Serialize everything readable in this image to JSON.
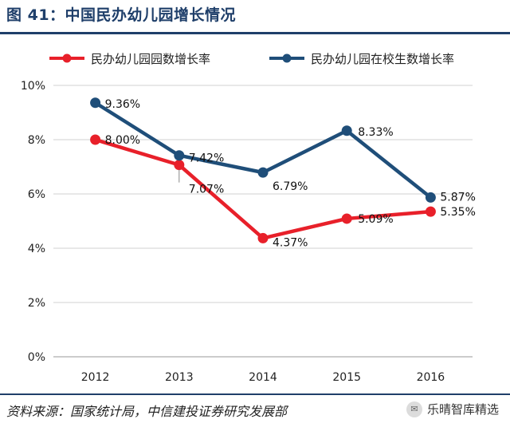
{
  "figure": {
    "title": "图 41：中国民办幼儿园增长情况",
    "source": "资料来源：国家统计局，中信建投证券研究发展部",
    "watermark": "乐晴智库精选"
  },
  "chart_data": {
    "type": "line",
    "title": "",
    "xlabel": "",
    "ylabel": "",
    "categories": [
      "2012",
      "2013",
      "2014",
      "2015",
      "2016"
    ],
    "ylim": [
      0,
      10
    ],
    "yticks": [
      0,
      2,
      4,
      6,
      8,
      10
    ],
    "ytick_labels": [
      "0%",
      "2%",
      "4%",
      "6%",
      "8%",
      "10%"
    ],
    "legend_position": "top",
    "grid": "horizontal",
    "series": [
      {
        "name": "民办幼儿园园数增长率",
        "color": "#e8202a",
        "values": [
          8.0,
          7.07,
          4.37,
          5.09,
          5.35
        ],
        "labels": [
          "8.00%",
          "7.07%",
          "4.37%",
          "5.09%",
          "5.35%"
        ]
      },
      {
        "name": "民办幼儿园在校生数增长率",
        "color": "#1f4e79",
        "values": [
          9.36,
          7.42,
          6.79,
          8.33,
          5.87
        ],
        "labels": [
          "9.36%",
          "7.42%",
          "6.79%",
          "8.33%",
          "5.87%"
        ]
      }
    ]
  }
}
